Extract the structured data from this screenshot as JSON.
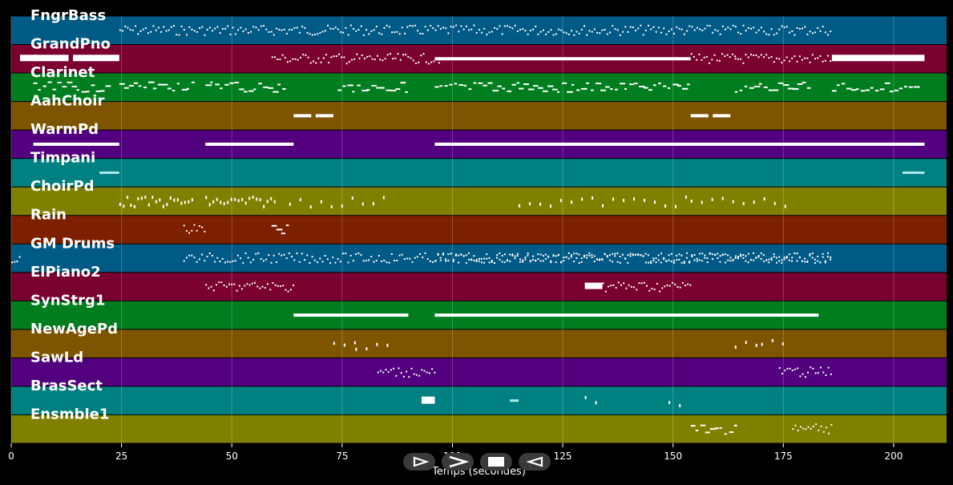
{
  "chart_data": {
    "type": "piano-roll",
    "xlabel": "Temps (secondes)",
    "xlim": [
      0,
      212
    ],
    "xticks": [
      0,
      25,
      50,
      75,
      100,
      125,
      150,
      175,
      200
    ],
    "tracks": [
      {
        "name": "FngrBass",
        "color": "#005a86",
        "segments": [
          [
            24.5,
            186,
            "dots"
          ]
        ]
      },
      {
        "name": "GrandPno",
        "color": "#7a0030",
        "segments": [
          [
            2,
            6,
            "block"
          ],
          [
            5,
            10,
            "block"
          ],
          [
            10,
            13,
            "block"
          ],
          [
            14,
            24.5,
            "block"
          ],
          [
            59,
            97,
            "dots"
          ],
          [
            96,
            154,
            "bar"
          ],
          [
            154,
            164,
            "dots"
          ],
          [
            164,
            186,
            "dots"
          ],
          [
            186,
            207,
            "block"
          ]
        ]
      },
      {
        "name": "Clarinet",
        "color": "#007d1e",
        "segments": [
          [
            5,
            22,
            "dash"
          ],
          [
            24.5,
            41,
            "dash"
          ],
          [
            44,
            62,
            "dash"
          ],
          [
            74,
            90,
            "dash"
          ],
          [
            96,
            115,
            "dash"
          ],
          [
            115,
            154,
            "dash"
          ],
          [
            164,
            181,
            "dash"
          ],
          [
            186,
            205,
            "dash"
          ]
        ]
      },
      {
        "name": "AahChoir",
        "color": "#7d5500",
        "segments": [
          [
            64,
            68,
            "bar"
          ],
          [
            69,
            73,
            "bar"
          ],
          [
            154,
            158,
            "bar"
          ],
          [
            159,
            163,
            "bar"
          ]
        ]
      },
      {
        "name": "WarmPd",
        "color": "#52007d",
        "segments": [
          [
            5,
            24.5,
            "bar"
          ],
          [
            44,
            64,
            "bar"
          ],
          [
            96,
            207,
            "bar"
          ]
        ]
      },
      {
        "name": "Timpani",
        "color": "#008080",
        "segments": [
          [
            20,
            24.5,
            "faint"
          ],
          [
            202,
            207,
            "faint"
          ]
        ]
      },
      {
        "name": "ChoirPd",
        "color": "#808000",
        "segments": [
          [
            24.5,
            41,
            "ticks"
          ],
          [
            44,
            60,
            "ticks"
          ],
          [
            63,
            86,
            "sparse"
          ],
          [
            115,
            154,
            "sparse"
          ],
          [
            154,
            177,
            "sparse"
          ]
        ]
      },
      {
        "name": "Rain",
        "color": "#7d2000",
        "segments": [
          [
            39,
            44,
            "dots"
          ],
          [
            59,
            63,
            "dash"
          ]
        ]
      },
      {
        "name": "GM Drums",
        "color": "#005a86",
        "segments": [
          [
            0,
            2,
            "dots"
          ],
          [
            39,
            186,
            "dots"
          ],
          [
            96,
            186,
            "dots"
          ]
        ]
      },
      {
        "name": "ElPiano2",
        "color": "#7a0030",
        "segments": [
          [
            44,
            64,
            "dots"
          ],
          [
            130,
            134,
            "block"
          ],
          [
            134,
            154,
            "dots"
          ]
        ]
      },
      {
        "name": "SynStrg1",
        "color": "#007d1e",
        "segments": [
          [
            64,
            90,
            "bar"
          ],
          [
            96,
            154,
            "bar"
          ],
          [
            154,
            183,
            "bar"
          ]
        ]
      },
      {
        "name": "NewAgePd",
        "color": "#7d5500",
        "segments": [
          [
            73,
            79,
            "sparse"
          ],
          [
            78,
            86,
            "sparse"
          ],
          [
            164,
            170,
            "sparse"
          ],
          [
            170,
            177,
            "sparse"
          ]
        ]
      },
      {
        "name": "SawLd",
        "color": "#52007d",
        "segments": [
          [
            83,
            96,
            "dots"
          ],
          [
            174,
            186,
            "dots"
          ]
        ]
      },
      {
        "name": "BrasSect",
        "color": "#008080",
        "segments": [
          [
            93,
            96,
            "chord"
          ],
          [
            113,
            115,
            "faint"
          ],
          [
            130,
            133,
            "sparse"
          ],
          [
            149,
            152,
            "sparse"
          ]
        ]
      },
      {
        "name": "Ensmble1",
        "color": "#808000",
        "segments": [
          [
            154,
            164,
            "dash"
          ],
          [
            177,
            186,
            "dots"
          ]
        ]
      }
    ]
  },
  "controls": {
    "play": "play-icon",
    "forward": "forward-icon",
    "stop": "stop-icon",
    "back": "back-icon"
  }
}
